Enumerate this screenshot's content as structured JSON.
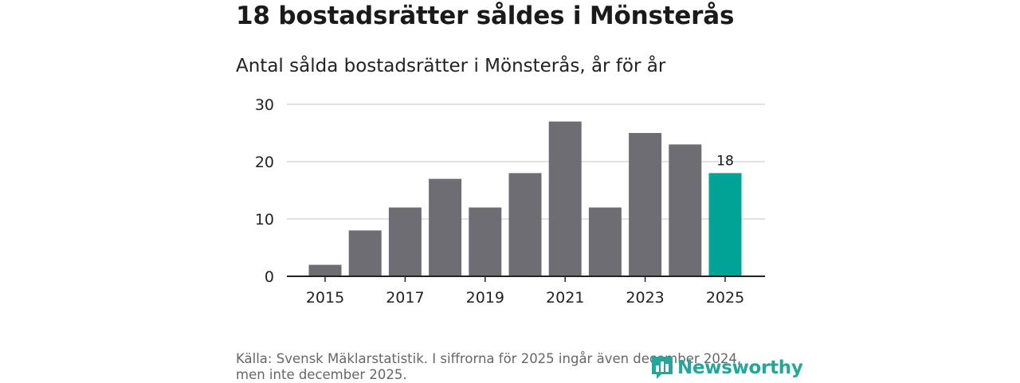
{
  "header": {
    "title": "18 bostadsrätter såldes i Mönsterås",
    "subtitle": "Antal sålda bostadsrätter i Mönsterås, år för år"
  },
  "chart_data": {
    "type": "bar",
    "title": "Antal sålda bostadsrätter i Mönsterås, år för år",
    "categories": [
      "2015",
      "2016",
      "2017",
      "2018",
      "2019",
      "2020",
      "2021",
      "2022",
      "2023",
      "2024",
      "2025"
    ],
    "values": [
      2,
      8,
      12,
      17,
      12,
      18,
      27,
      12,
      25,
      23,
      18
    ],
    "x_tick_labels": [
      "2015",
      "2017",
      "2019",
      "2021",
      "2023",
      "2025"
    ],
    "y_ticks": [
      0,
      10,
      20,
      30
    ],
    "ylim": [
      0,
      30
    ],
    "xlabel": "",
    "ylabel": "",
    "grid": true,
    "highlight_index": 10,
    "highlight_label": "18",
    "colors": {
      "bar": "#6d6d73",
      "highlight": "#00a396",
      "grid": "#d9d9d9",
      "axis": "#222222"
    }
  },
  "footer": {
    "source": "Källa: Svensk Mäklarstatistik. I siffrorna för 2025 ingår även december 2024, men inte december 2025.",
    "logo_text": "Newsworthy",
    "logo_icon": "bar-chart-bubble-icon",
    "logo_color": "#26a69a"
  }
}
